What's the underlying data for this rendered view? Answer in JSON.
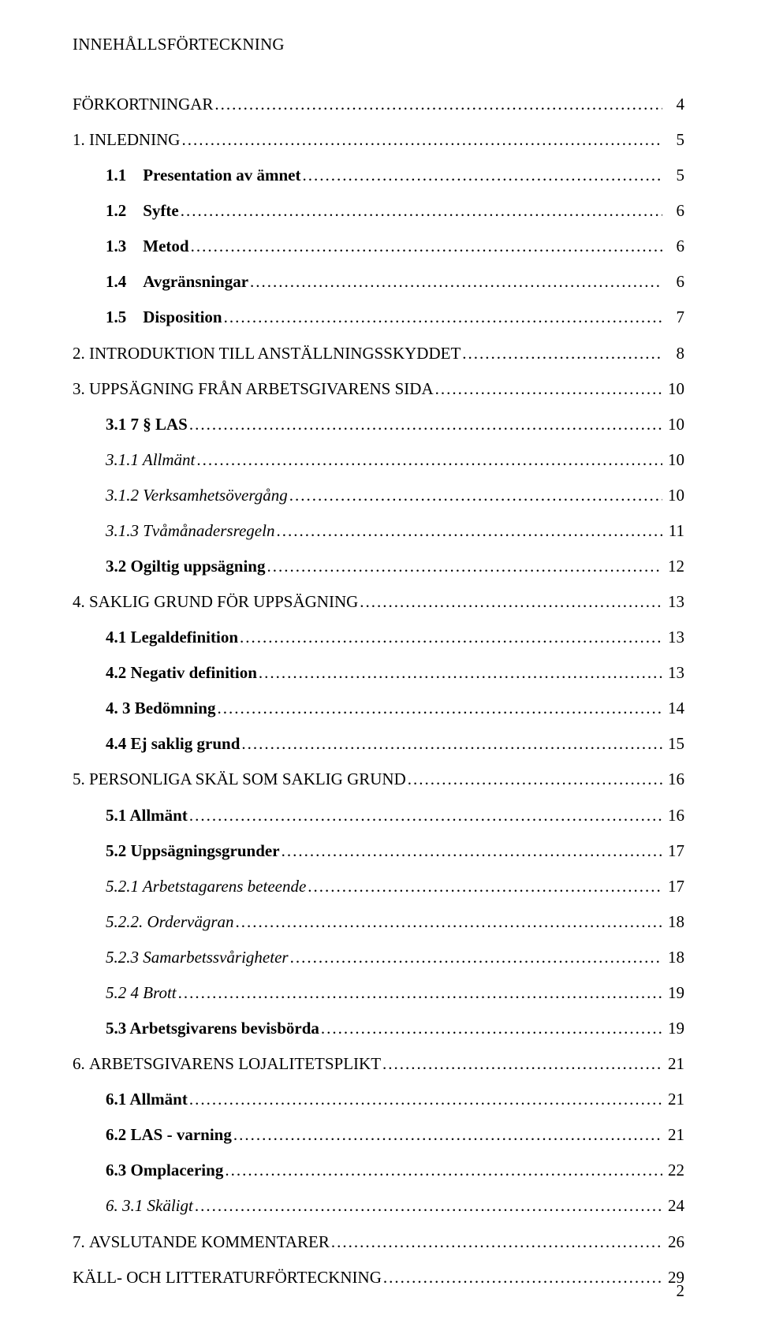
{
  "page": {
    "title": "INNEHÅLLSFÖRTECKNING",
    "footer_page_number": "2",
    "background_color": "#ffffff",
    "text_color": "#000000",
    "font_family": "Times New Roman",
    "base_font_size_pt": 16
  },
  "toc": [
    {
      "level": 0,
      "prefix": "",
      "label": "FÖRKORTNINGAR",
      "page": "4",
      "bold": false,
      "italic": false,
      "gap_before": false
    },
    {
      "level": 0,
      "prefix": "1. ",
      "label": "INLEDNING",
      "page": "5",
      "bold": false,
      "italic": false,
      "gap_before": true
    },
    {
      "level": 1,
      "prefix": "1.1    ",
      "label": "Presentation av ämnet",
      "page": "5",
      "bold": true,
      "italic": false,
      "gap_before": true
    },
    {
      "level": 1,
      "prefix": "1.2    ",
      "label": "Syfte",
      "page": "6",
      "bold": true,
      "italic": false,
      "gap_before": true
    },
    {
      "level": 1,
      "prefix": "1.3    ",
      "label": "Metod",
      "page": "6",
      "bold": true,
      "italic": false,
      "gap_before": true
    },
    {
      "level": 1,
      "prefix": "1.4    ",
      "label": "Avgränsningar",
      "page": "6",
      "bold": true,
      "italic": false,
      "gap_before": true
    },
    {
      "level": 1,
      "prefix": "1.5    ",
      "label": "Disposition",
      "page": "7",
      "bold": true,
      "italic": false,
      "gap_before": true
    },
    {
      "level": 0,
      "prefix": "2. ",
      "label": "INTRODUKTION TILL ANSTÄLLNINGSSKYDDET",
      "page": "8",
      "bold": false,
      "italic": false,
      "gap_before": true
    },
    {
      "level": 0,
      "prefix": "3. ",
      "label": "UPPSÄGNING FRÅN ARBETSGIVARENS SIDA",
      "page": "10",
      "bold": false,
      "italic": false,
      "gap_before": true
    },
    {
      "level": 1,
      "prefix": "3.1 ",
      "label": "7 § LAS",
      "page": "10",
      "bold": true,
      "italic": false,
      "gap_before": true
    },
    {
      "level": 2,
      "prefix": "",
      "label": "3.1.1  Allmänt",
      "page": "10",
      "bold": false,
      "italic": true,
      "gap_before": true
    },
    {
      "level": 2,
      "prefix": "",
      "label": "3.1.2 Verksamhetsövergång",
      "page": "10",
      "bold": false,
      "italic": true,
      "gap_before": true
    },
    {
      "level": 2,
      "prefix": "",
      "label": "3.1.3 Tvåmånadersregeln",
      "page": "11",
      "bold": false,
      "italic": true,
      "gap_before": true
    },
    {
      "level": 1,
      "prefix": "3.2 ",
      "label": "Ogiltig uppsägning",
      "page": "12",
      "bold": true,
      "italic": false,
      "gap_before": true
    },
    {
      "level": 0,
      "prefix": "4. ",
      "label": "SAKLIG GRUND FÖR UPPSÄGNING",
      "page": "13",
      "bold": false,
      "italic": false,
      "gap_before": true
    },
    {
      "level": 1,
      "prefix": "",
      "label": "4.1 Legaldefinition",
      "page": "13",
      "bold": true,
      "italic": false,
      "gap_before": true
    },
    {
      "level": 1,
      "prefix": "",
      "label": "4.2 Negativ definition",
      "page": "13",
      "bold": true,
      "italic": false,
      "gap_before": true
    },
    {
      "level": 1,
      "prefix": "",
      "label": "4. 3 Bedömning",
      "page": "14",
      "bold": true,
      "italic": false,
      "gap_before": true
    },
    {
      "level": 1,
      "prefix": "",
      "label": "4.4 Ej saklig grund",
      "page": "15",
      "bold": true,
      "italic": false,
      "gap_before": true
    },
    {
      "level": 0,
      "prefix": "5. ",
      "label": "PERSONLIGA SKÄL SOM SAKLIG GRUND",
      "page": "16",
      "bold": false,
      "italic": false,
      "gap_before": true
    },
    {
      "level": 1,
      "prefix": "",
      "label": "5.1 Allmänt",
      "page": "16",
      "bold": true,
      "italic": false,
      "gap_before": true
    },
    {
      "level": 1,
      "prefix": "",
      "label": "5.2 Uppsägningsgrunder",
      "page": "17",
      "bold": true,
      "italic": false,
      "gap_before": true
    },
    {
      "level": 2,
      "prefix": "",
      "label": "5.2.1 Arbetstagarens beteende",
      "page": "17",
      "bold": false,
      "italic": true,
      "gap_before": true
    },
    {
      "level": 2,
      "prefix": "",
      "label": "5.2.2. Ordervägran",
      "page": "18",
      "bold": false,
      "italic": true,
      "gap_before": true
    },
    {
      "level": 2,
      "prefix": "",
      "label": "5.2.3 Samarbetssvårigheter",
      "page": "18",
      "bold": false,
      "italic": true,
      "gap_before": true
    },
    {
      "level": 2,
      "prefix": "",
      "label": "5.2 4 Brott",
      "page": "19",
      "bold": false,
      "italic": true,
      "gap_before": true
    },
    {
      "level": 1,
      "prefix": "",
      "label": "5.3  Arbetsgivarens bevisbörda",
      "page": "19",
      "bold": true,
      "italic": false,
      "gap_before": true
    },
    {
      "level": 0,
      "prefix": "6. ",
      "label": "ARBETSGIVARENS LOJALITETSPLIKT",
      "page": "21",
      "bold": false,
      "italic": false,
      "gap_before": true
    },
    {
      "level": 1,
      "prefix": "",
      "label": "6.1 Allmänt",
      "page": "21",
      "bold": true,
      "italic": false,
      "gap_before": true
    },
    {
      "level": 1,
      "prefix": "",
      "label": "6.2  LAS - varning",
      "page": "21",
      "bold": true,
      "italic": false,
      "gap_before": true
    },
    {
      "level": 1,
      "prefix": "",
      "label": "6.3 Omplacering",
      "page": "22",
      "bold": true,
      "italic": false,
      "gap_before": true
    },
    {
      "level": 2,
      "prefix": "",
      "label": "6. 3.1  Skäligt",
      "page": "24",
      "bold": false,
      "italic": true,
      "gap_before": true
    },
    {
      "level": 0,
      "prefix": "7. ",
      "label": "AVSLUTANDE KOMMENTARER",
      "page": "26",
      "bold": false,
      "italic": false,
      "gap_before": true
    },
    {
      "level": 0,
      "prefix": "",
      "label": "KÄLL- OCH LITTERATURFÖRTECKNING",
      "page": "29",
      "bold": false,
      "italic": false,
      "gap_before": true
    }
  ]
}
